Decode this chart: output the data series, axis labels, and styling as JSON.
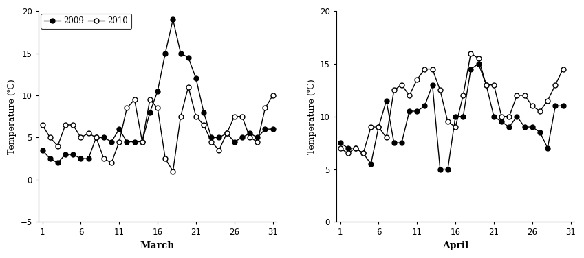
{
  "march_days": [
    1,
    2,
    3,
    4,
    5,
    6,
    7,
    8,
    9,
    10,
    11,
    12,
    13,
    14,
    15,
    16,
    17,
    18,
    19,
    20,
    21,
    22,
    23,
    24,
    25,
    26,
    27,
    28,
    29,
    30,
    31
  ],
  "march_2009": [
    3.5,
    2.5,
    2.0,
    3.0,
    3.0,
    2.5,
    2.5,
    5.0,
    5.0,
    4.5,
    6.0,
    4.5,
    4.5,
    4.5,
    8.0,
    10.5,
    15.0,
    19.0,
    15.0,
    14.5,
    12.0,
    8.0,
    5.0,
    5.0,
    5.5,
    4.5,
    5.0,
    5.5,
    5.0,
    6.0,
    6.0
  ],
  "march_2010": [
    6.5,
    5.0,
    4.0,
    6.5,
    6.5,
    5.0,
    5.5,
    5.0,
    2.5,
    2.0,
    4.5,
    8.5,
    9.5,
    4.5,
    9.5,
    8.5,
    2.5,
    1.0,
    7.5,
    11.0,
    7.5,
    6.5,
    4.5,
    3.5,
    5.5,
    7.5,
    7.5,
    5.0,
    4.5,
    8.5,
    10.0
  ],
  "april_days": [
    1,
    2,
    3,
    4,
    5,
    6,
    7,
    8,
    9,
    10,
    11,
    12,
    13,
    14,
    15,
    16,
    17,
    18,
    19,
    20,
    21,
    22,
    23,
    24,
    25,
    26,
    27,
    28,
    29,
    30
  ],
  "april_2009": [
    7.5,
    7.0,
    7.0,
    6.5,
    5.5,
    9.0,
    11.5,
    7.5,
    7.5,
    10.5,
    10.5,
    11.0,
    13.0,
    5.0,
    5.0,
    10.0,
    10.0,
    14.5,
    15.0,
    13.0,
    10.0,
    9.5,
    9.0,
    10.0,
    9.0,
    9.0,
    8.5,
    7.0,
    11.0,
    11.0
  ],
  "april_2010": [
    7.0,
    6.5,
    7.0,
    6.5,
    9.0,
    9.0,
    8.0,
    12.5,
    13.0,
    12.0,
    13.5,
    14.5,
    14.5,
    12.5,
    9.5,
    9.0,
    12.0,
    16.0,
    15.5,
    13.0,
    13.0,
    10.0,
    10.0,
    12.0,
    12.0,
    11.0,
    10.5,
    11.5,
    13.0,
    14.5
  ],
  "ylabel": "Temperature (℃)",
  "xlabel_march": "March",
  "xlabel_april": "April",
  "legend_2009": "2009",
  "legend_2010": "2010",
  "march_ylim": [
    -5,
    20
  ],
  "april_ylim": [
    0,
    20
  ],
  "march_yticks": [
    -5,
    0,
    5,
    10,
    15,
    20
  ],
  "april_yticks": [
    0,
    5,
    10,
    15,
    20
  ],
  "xticks": [
    1,
    6,
    11,
    16,
    21,
    26,
    31
  ],
  "line_color": "#000000",
  "filled_color": "#000000",
  "open_color": "#ffffff",
  "fig_width": 8.49,
  "fig_height": 3.76,
  "dpi": 100
}
